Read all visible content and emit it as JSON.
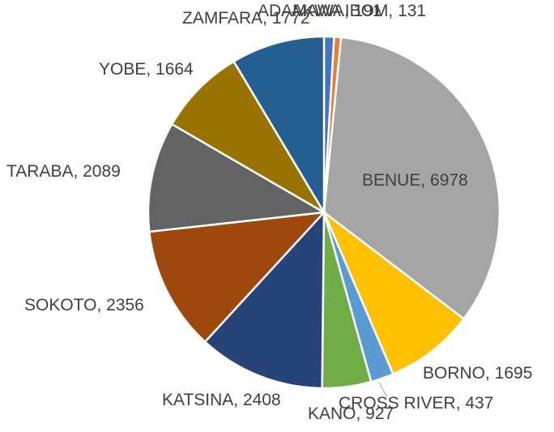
{
  "chart_data": {
    "type": "pie",
    "categories": [
      "ADAMAWA",
      "AKWA IBOM",
      "BENUE",
      "BORNO",
      "CROSS RIVER",
      "KANO",
      "KATSINA",
      "SOKOTO",
      "TARABA",
      "YOBE",
      "ZAMFARA"
    ],
    "values": [
      191,
      131,
      6978,
      1695,
      437,
      927,
      2408,
      2356,
      2089,
      1664,
      1772
    ],
    "value_labels": [
      "ADAMAWA, 191",
      "AKWA IBOM, 131",
      "BENUE, 6978",
      "BORNO, 1695",
      "CROSS RIVER, 437",
      "KANO, 927",
      "KATSINA, 2408",
      "SOKOTO, 2356",
      "TARABA, 2089",
      "YOBE, 1664",
      "ZAMFARA, 1772"
    ],
    "colors": [
      "#4472c4",
      "#ed7d31",
      "#a5a5a5",
      "#ffc000",
      "#5b9bd5",
      "#70ad47",
      "#264478",
      "#9e480e",
      "#636363",
      "#997300",
      "#255e91"
    ]
  }
}
